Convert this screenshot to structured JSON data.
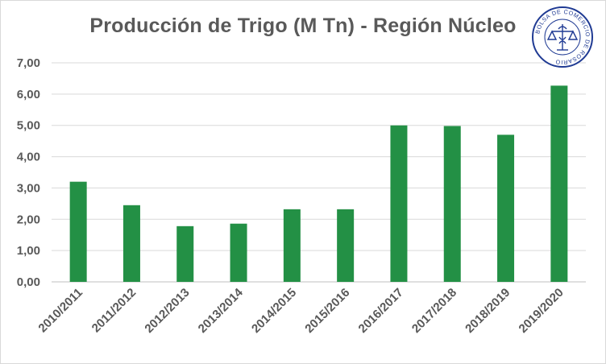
{
  "chart_data": {
    "type": "bar",
    "title": "Producción de Trigo (M Tn) - Región Núcleo",
    "xlabel": "",
    "ylabel": "",
    "categories": [
      "2010/2011",
      "2011/2012",
      "2012/2013",
      "2013/2014",
      "2014/2015",
      "2015/2016",
      "2016/2017",
      "2017/2018",
      "2018/2019",
      "2019/2020"
    ],
    "values": [
      3.2,
      2.45,
      1.78,
      1.86,
      2.32,
      2.32,
      5.0,
      4.98,
      4.7,
      6.27
    ],
    "ylim": [
      0,
      7
    ],
    "yticks": [
      "0,00",
      "1,00",
      "2,00",
      "3,00",
      "4,00",
      "5,00",
      "6,00",
      "7,00"
    ],
    "grid": true,
    "legend": "none",
    "bar_color": "#239045"
  },
  "logo": {
    "text": "BOLSA DE COMERCIO DE ROSARIO",
    "color": "#1f3a93"
  }
}
